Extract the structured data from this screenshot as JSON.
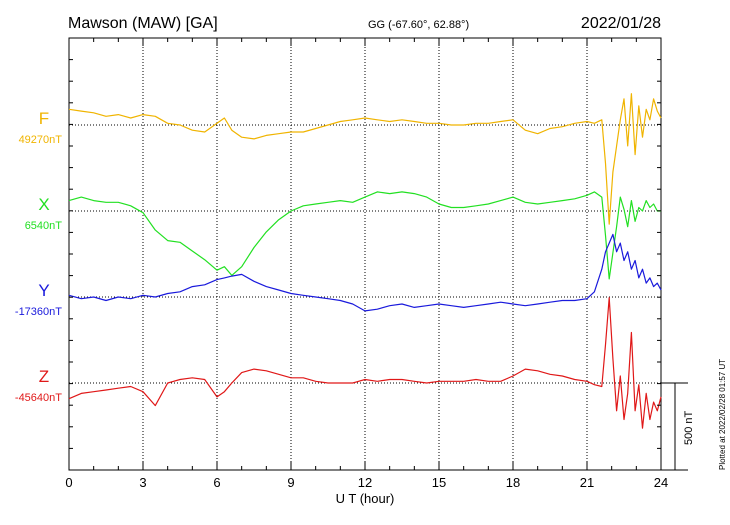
{
  "header": {
    "station": "Mawson (MAW)  [GA]",
    "coords": "GG (-67.60°,  62.88°)",
    "date": "2022/01/28"
  },
  "side_note": "Plotted at 2022/02/28 01:57 UT",
  "chart_data": {
    "type": "line",
    "xlabel": "U T (hour)",
    "xlim": [
      0,
      24
    ],
    "xticks": [
      0,
      3,
      6,
      9,
      12,
      15,
      18,
      21,
      24
    ],
    "xtick_labels": [
      "0",
      "3",
      "6",
      "9",
      "12",
      "15",
      "18",
      "21",
      "24"
    ],
    "grid": true,
    "scale_bar": {
      "value": 500,
      "label": "500 nT"
    },
    "series": [
      {
        "name": "F",
        "baseline_label": "49270nT",
        "baseline": 49270,
        "color": "#f0b400",
        "x": [
          0,
          0.5,
          1,
          1.5,
          2,
          2.5,
          3,
          3.5,
          4,
          4.5,
          5,
          5.5,
          6,
          6.3,
          6.6,
          7,
          7.5,
          8,
          8.5,
          9,
          9.5,
          10,
          10.5,
          11,
          11.5,
          12,
          12.5,
          13,
          13.5,
          14,
          14.5,
          15,
          15.5,
          16,
          16.5,
          17,
          17.5,
          18,
          18.5,
          19,
          19.5,
          20,
          20.5,
          21,
          21.3,
          21.6,
          21.75,
          21.9,
          22.05,
          22.2,
          22.35,
          22.5,
          22.65,
          22.8,
          22.95,
          23.1,
          23.25,
          23.4,
          23.55,
          23.7,
          23.85,
          24
        ],
        "values": [
          49360,
          49350,
          49340,
          49320,
          49330,
          49310,
          49330,
          49320,
          49280,
          49270,
          49240,
          49230,
          49280,
          49310,
          49240,
          49200,
          49190,
          49210,
          49220,
          49230,
          49230,
          49250,
          49270,
          49290,
          49300,
          49310,
          49300,
          49290,
          49300,
          49290,
          49280,
          49280,
          49270,
          49270,
          49280,
          49280,
          49290,
          49300,
          49240,
          49220,
          49250,
          49260,
          49280,
          49290,
          49280,
          49300,
          49050,
          48700,
          49000,
          49150,
          49300,
          49420,
          49150,
          49450,
          49100,
          49380,
          49200,
          49360,
          49300,
          49420,
          49350,
          49310
        ]
      },
      {
        "name": "X",
        "baseline_label": "6540nT",
        "baseline": 6540,
        "color": "#22e022",
        "x": [
          0,
          0.5,
          1,
          1.5,
          2,
          2.5,
          3,
          3.5,
          4,
          4.5,
          5,
          5.5,
          6,
          6.3,
          6.6,
          7,
          7.5,
          8,
          8.5,
          9,
          9.5,
          10,
          10.5,
          11,
          11.5,
          12,
          12.5,
          13,
          13.5,
          14,
          14.5,
          15,
          15.5,
          16,
          16.5,
          17,
          17.5,
          18,
          18.5,
          19,
          19.5,
          20,
          20.5,
          21,
          21.3,
          21.6,
          21.75,
          21.9,
          22.05,
          22.2,
          22.35,
          22.5,
          22.65,
          22.8,
          22.95,
          23.1,
          23.25,
          23.4,
          23.55,
          23.7,
          23.85,
          24
        ],
        "values": [
          6600,
          6620,
          6600,
          6590,
          6590,
          6570,
          6530,
          6430,
          6370,
          6360,
          6310,
          6260,
          6200,
          6220,
          6170,
          6220,
          6330,
          6420,
          6490,
          6540,
          6570,
          6580,
          6590,
          6600,
          6590,
          6620,
          6650,
          6640,
          6650,
          6640,
          6620,
          6580,
          6560,
          6560,
          6570,
          6580,
          6600,
          6620,
          6590,
          6580,
          6590,
          6600,
          6610,
          6630,
          6650,
          6620,
          6400,
          6150,
          6300,
          6450,
          6620,
          6550,
          6450,
          6600,
          6480,
          6560,
          6540,
          6600,
          6560,
          6580,
          6540,
          6540
        ]
      },
      {
        "name": "Y",
        "baseline_label": "-17360nT",
        "baseline": -17360,
        "color": "#1a1adc",
        "x": [
          0,
          0.5,
          1,
          1.5,
          2,
          2.5,
          3,
          3.5,
          4,
          4.5,
          5,
          5.5,
          6,
          6.3,
          6.6,
          7,
          7.5,
          8,
          8.5,
          9,
          9.5,
          10,
          10.5,
          11,
          11.5,
          12,
          12.5,
          13,
          13.5,
          14,
          14.5,
          15,
          15.5,
          16,
          16.5,
          17,
          17.5,
          18,
          18.5,
          19,
          19.5,
          20,
          20.5,
          21,
          21.3,
          21.6,
          21.75,
          21.9,
          22.05,
          22.2,
          22.35,
          22.5,
          22.65,
          22.8,
          22.95,
          23.1,
          23.25,
          23.4,
          23.55,
          23.7,
          23.85,
          24
        ],
        "values": [
          -17350,
          -17370,
          -17360,
          -17380,
          -17360,
          -17370,
          -17350,
          -17360,
          -17340,
          -17330,
          -17300,
          -17290,
          -17260,
          -17250,
          -17240,
          -17230,
          -17270,
          -17300,
          -17320,
          -17340,
          -17350,
          -17360,
          -17370,
          -17380,
          -17400,
          -17440,
          -17430,
          -17410,
          -17400,
          -17420,
          -17410,
          -17400,
          -17410,
          -17420,
          -17410,
          -17400,
          -17390,
          -17400,
          -17410,
          -17400,
          -17390,
          -17380,
          -17380,
          -17370,
          -17330,
          -17200,
          -17100,
          -17050,
          -17000,
          -17100,
          -17050,
          -17150,
          -17100,
          -17200,
          -17150,
          -17250,
          -17200,
          -17280,
          -17250,
          -17300,
          -17280,
          -17320
        ]
      },
      {
        "name": "Z",
        "baseline_label": "-45640nT",
        "baseline": -45640,
        "color": "#e01818",
        "x": [
          0,
          0.5,
          1,
          1.5,
          2,
          2.5,
          3,
          3.5,
          4,
          4.5,
          5,
          5.5,
          6,
          6.3,
          6.6,
          7,
          7.5,
          8,
          8.5,
          9,
          9.5,
          10,
          10.5,
          11,
          11.5,
          12,
          12.5,
          13,
          13.5,
          14,
          14.5,
          15,
          15.5,
          16,
          16.5,
          17,
          17.5,
          18,
          18.5,
          19,
          19.5,
          20,
          20.5,
          21,
          21.3,
          21.6,
          21.75,
          21.9,
          22.05,
          22.2,
          22.35,
          22.5,
          22.65,
          22.8,
          22.95,
          23.1,
          23.25,
          23.4,
          23.55,
          23.7,
          23.85,
          24
        ],
        "values": [
          -45730,
          -45700,
          -45690,
          -45680,
          -45670,
          -45660,
          -45690,
          -45770,
          -45640,
          -45620,
          -45610,
          -45620,
          -45720,
          -45690,
          -45640,
          -45580,
          -45560,
          -45570,
          -45590,
          -45610,
          -45610,
          -45630,
          -45640,
          -45640,
          -45640,
          -45620,
          -45630,
          -45620,
          -45620,
          -45630,
          -45640,
          -45630,
          -45630,
          -45630,
          -45620,
          -45630,
          -45630,
          -45600,
          -45560,
          -45570,
          -45590,
          -45600,
          -45620,
          -45630,
          -45650,
          -45660,
          -45420,
          -45150,
          -45500,
          -45800,
          -45600,
          -45850,
          -45700,
          -45350,
          -45800,
          -45650,
          -45900,
          -45700,
          -45850,
          -45750,
          -45800,
          -45720
        ]
      }
    ]
  }
}
